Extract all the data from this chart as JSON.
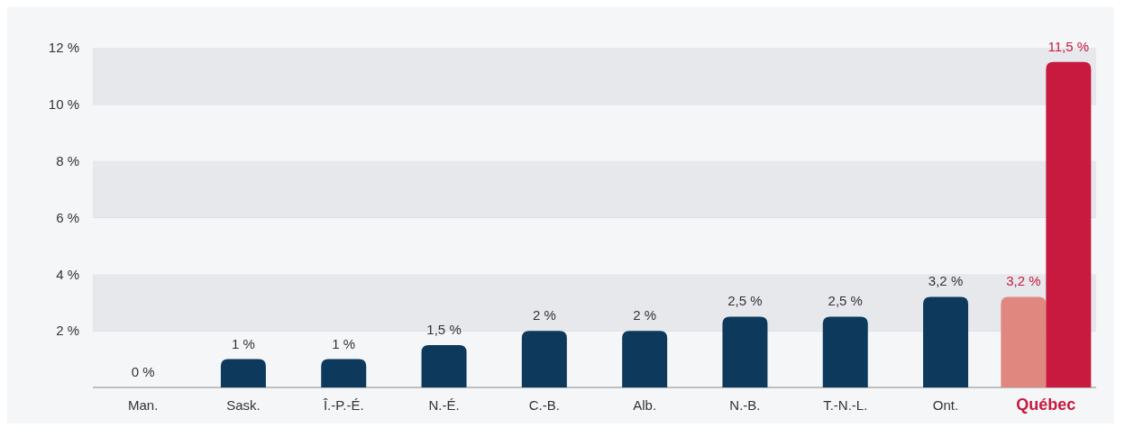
{
  "chart_data": {
    "type": "bar",
    "categories": [
      "Man.",
      "Sask.",
      "Î.-P.-É.",
      "N.-É.",
      "C.-B.",
      "Alb.",
      "N.-B.",
      "T.-N.-L.",
      "Ont.",
      "Québec"
    ],
    "series": [
      {
        "color": "#0d3a5c",
        "colors": [
          null,
          null,
          null,
          null,
          null,
          null,
          null,
          null,
          null,
          "#e0877f"
        ],
        "values": [
          0,
          1,
          1,
          1.5,
          2,
          2,
          2.5,
          2.5,
          3.2,
          3.2
        ],
        "value_labels": [
          "0 %",
          "1 %",
          "1 %",
          "1,5 %",
          "2 %",
          "2 %",
          "2,5 %",
          "2,5 %",
          "3,2 %",
          "3,2 %"
        ]
      },
      {
        "color": "#c8193f",
        "values": [
          null,
          null,
          null,
          null,
          null,
          null,
          null,
          null,
          null,
          11.5
        ],
        "value_labels": [
          null,
          null,
          null,
          null,
          null,
          null,
          null,
          null,
          null,
          "11,5 %"
        ]
      }
    ],
    "ylim": [
      0,
      12
    ],
    "yticks": [
      {
        "value": 2,
        "label": "2 %"
      },
      {
        "value": 4,
        "label": "4 %"
      },
      {
        "value": 6,
        "label": "6 %"
      },
      {
        "value": 8,
        "label": "8 %"
      },
      {
        "value": 10,
        "label": "10 %"
      },
      {
        "value": 12,
        "label": "12 %"
      }
    ],
    "grid": "y"
  }
}
